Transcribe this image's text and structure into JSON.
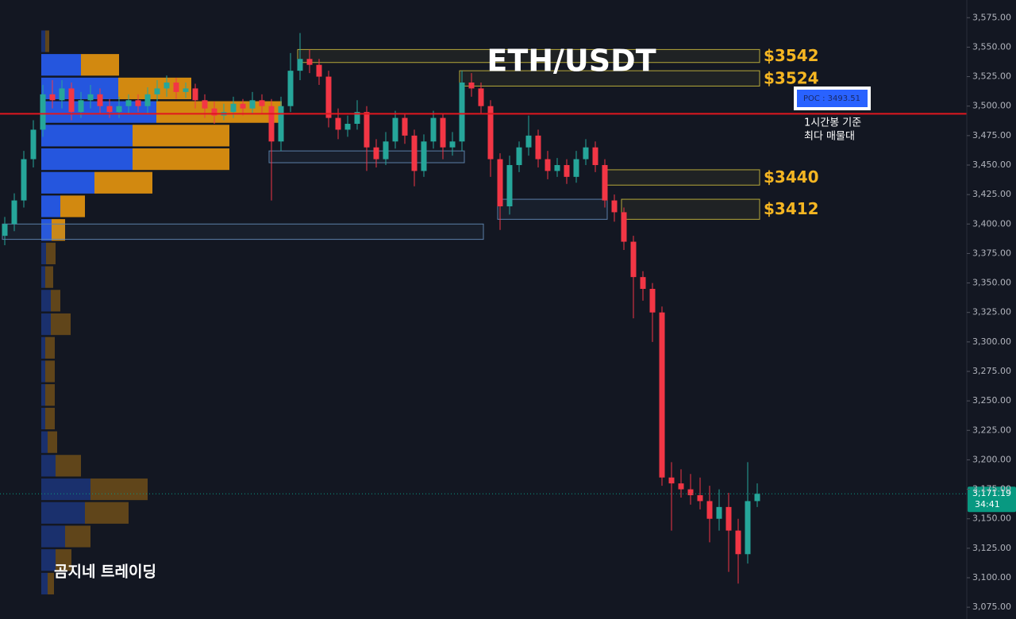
{
  "chart_data": {
    "type": "candlestick",
    "title": "ETH/USDT",
    "watermark": "곰지네 트레이딩",
    "up_color": "#26a69a",
    "down_color": "#f23645",
    "grid": false,
    "ylim": [
      3065,
      3590
    ],
    "yticks": [
      {
        "value": 3575,
        "label": "3,575.00"
      },
      {
        "value": 3550,
        "label": "3,550.00"
      },
      {
        "value": 3525,
        "label": "3,525.00"
      },
      {
        "value": 3500,
        "label": "3,500.00"
      },
      {
        "value": 3475,
        "label": "3,475.00"
      },
      {
        "value": 3450,
        "label": "3,450.00"
      },
      {
        "value": 3425,
        "label": "3,425.00"
      },
      {
        "value": 3400,
        "label": "3,400.00"
      },
      {
        "value": 3375,
        "label": "3,375.00"
      },
      {
        "value": 3350,
        "label": "3,350.00"
      },
      {
        "value": 3325,
        "label": "3,325.00"
      },
      {
        "value": 3300,
        "label": "3,300.00"
      },
      {
        "value": 3275,
        "label": "3,275.00"
      },
      {
        "value": 3250,
        "label": "3,250.00"
      },
      {
        "value": 3225,
        "label": "3,225.00"
      },
      {
        "value": 3200,
        "label": "3,200.00"
      },
      {
        "value": 3175,
        "label": "3,175.00"
      },
      {
        "value": 3150,
        "label": "3,150.00"
      },
      {
        "value": 3125,
        "label": "3,125.00"
      },
      {
        "value": 3100,
        "label": "3,100.00"
      },
      {
        "value": 3075,
        "label": "3,075.00"
      }
    ],
    "open": [
      3390,
      3400,
      3420,
      3455,
      3480,
      3510,
      3505,
      3515,
      3495,
      3505,
      3510,
      3500,
      3495,
      3500,
      3505,
      3500,
      3510,
      3515,
      3520,
      3512,
      3515,
      3505,
      3498,
      3492,
      3495,
      3502,
      3498,
      3505,
      3500,
      3470,
      3500,
      3530,
      3540,
      3535,
      3525,
      3490,
      3480,
      3485,
      3495,
      3465,
      3455,
      3470,
      3490,
      3475,
      3445,
      3470,
      3490,
      3465,
      3470,
      3520,
      3515,
      3500,
      3455,
      3415,
      3450,
      3465,
      3475,
      3455,
      3445,
      3450,
      3440,
      3455,
      3465,
      3450,
      3420,
      3410,
      3385,
      3355,
      3345,
      3325,
      3185,
      3180,
      3175,
      3170,
      3165,
      3150,
      3160,
      3140,
      3120,
      3165
    ],
    "high": [
      3406,
      3426,
      3462,
      3488,
      3518,
      3522,
      3522,
      3520,
      3512,
      3518,
      3515,
      3506,
      3508,
      3510,
      3510,
      3516,
      3522,
      3526,
      3524,
      3520,
      3519,
      3510,
      3504,
      3502,
      3508,
      3506,
      3512,
      3510,
      3506,
      3508,
      3545,
      3562,
      3548,
      3540,
      3530,
      3498,
      3492,
      3505,
      3500,
      3472,
      3478,
      3496,
      3494,
      3480,
      3476,
      3496,
      3494,
      3478,
      3530,
      3528,
      3520,
      3505,
      3460,
      3458,
      3470,
      3492,
      3480,
      3462,
      3456,
      3455,
      3462,
      3472,
      3470,
      3455,
      3425,
      3414,
      3390,
      3360,
      3350,
      3330,
      3198,
      3192,
      3188,
      3185,
      3178,
      3175,
      3172,
      3150,
      3198,
      3180
    ],
    "low": [
      3382,
      3394,
      3414,
      3448,
      3474,
      3498,
      3498,
      3488,
      3490,
      3498,
      3494,
      3490,
      3490,
      3494,
      3495,
      3494,
      3504,
      3508,
      3506,
      3507,
      3498,
      3490,
      3485,
      3488,
      3490,
      3492,
      3493,
      3494,
      3420,
      3462,
      3495,
      3522,
      3528,
      3518,
      3482,
      3472,
      3474,
      3480,
      3445,
      3448,
      3450,
      3464,
      3468,
      3432,
      3440,
      3464,
      3455,
      3458,
      3462,
      3508,
      3494,
      3440,
      3395,
      3408,
      3444,
      3458,
      3448,
      3438,
      3440,
      3434,
      3435,
      3450,
      3444,
      3414,
      3402,
      3378,
      3320,
      3335,
      3300,
      3178,
      3140,
      3168,
      3162,
      3158,
      3130,
      3140,
      3105,
      3095,
      3112,
      3160
    ],
    "close": [
      3400,
      3420,
      3455,
      3480,
      3510,
      3505,
      3515,
      3495,
      3505,
      3510,
      3500,
      3495,
      3500,
      3505,
      3500,
      3510,
      3515,
      3520,
      3512,
      3515,
      3505,
      3498,
      3492,
      3495,
      3502,
      3498,
      3505,
      3500,
      3470,
      3500,
      3530,
      3540,
      3535,
      3525,
      3490,
      3480,
      3485,
      3495,
      3465,
      3455,
      3470,
      3490,
      3475,
      3445,
      3470,
      3490,
      3465,
      3470,
      3520,
      3515,
      3500,
      3455,
      3415,
      3450,
      3465,
      3475,
      3455,
      3445,
      3450,
      3440,
      3455,
      3465,
      3450,
      3420,
      3410,
      3385,
      3355,
      3345,
      3325,
      3185,
      3180,
      3175,
      3170,
      3165,
      3150,
      3160,
      3140,
      3120,
      3165,
      3171.19
    ],
    "profile": {
      "buy_color": "#2962ff",
      "sell_color": "#f59d0d",
      "value_area": [
        3385,
        3545
      ],
      "levels": [
        3555,
        3535,
        3515,
        3495,
        3475,
        3455,
        3435,
        3415,
        3395,
        3375,
        3355,
        3335,
        3315,
        3295,
        3275,
        3255,
        3235,
        3215,
        3195,
        3175,
        3155,
        3135,
        3115,
        3095
      ],
      "buy": [
        5,
        50,
        97,
        145,
        115,
        115,
        67,
        24,
        13,
        6,
        5,
        12,
        12,
        5,
        5,
        5,
        5,
        8,
        18,
        62,
        55,
        30,
        18,
        8
      ],
      "sell": [
        5,
        48,
        92,
        158,
        122,
        122,
        73,
        31,
        17,
        12,
        10,
        12,
        25,
        12,
        12,
        12,
        12,
        12,
        32,
        72,
        55,
        32,
        20,
        8
      ]
    },
    "zones": [
      {
        "label": "$3542",
        "top": 3548,
        "bottom": 3537,
        "start": 31,
        "end": 79,
        "color": "#b5a83a"
      },
      {
        "label": "$3524",
        "top": 3530,
        "bottom": 3517,
        "start": 48,
        "end": 79,
        "color": "#b5a83a"
      },
      {
        "label": "$3440",
        "top": 3446,
        "bottom": 3433,
        "start": 63,
        "end": 79,
        "color": "#b5a83a"
      },
      {
        "label": "$3412",
        "top": 3421,
        "bottom": 3404,
        "start": 65,
        "end": 79,
        "color": "#b5a83a"
      },
      {
        "top": 3400,
        "bottom": 3387,
        "start": 0,
        "end": 50,
        "color": "#5b7fa8"
      },
      {
        "top": 3462,
        "bottom": 3452,
        "start": 28,
        "end": 48,
        "color": "#5b7fa8"
      },
      {
        "top": 3421,
        "bottom": 3404,
        "start": 52,
        "end": 63,
        "color": "#5b7fa8"
      }
    ],
    "poc": {
      "value": 3493.51,
      "label": "POC : 3493.51",
      "color": "#e0171f"
    },
    "poc_note": [
      "1시간봉 기준",
      "최다 매물대"
    ],
    "last_price": {
      "value": 3171.19,
      "label": "3,171.19"
    },
    "countdown": "34:41"
  }
}
